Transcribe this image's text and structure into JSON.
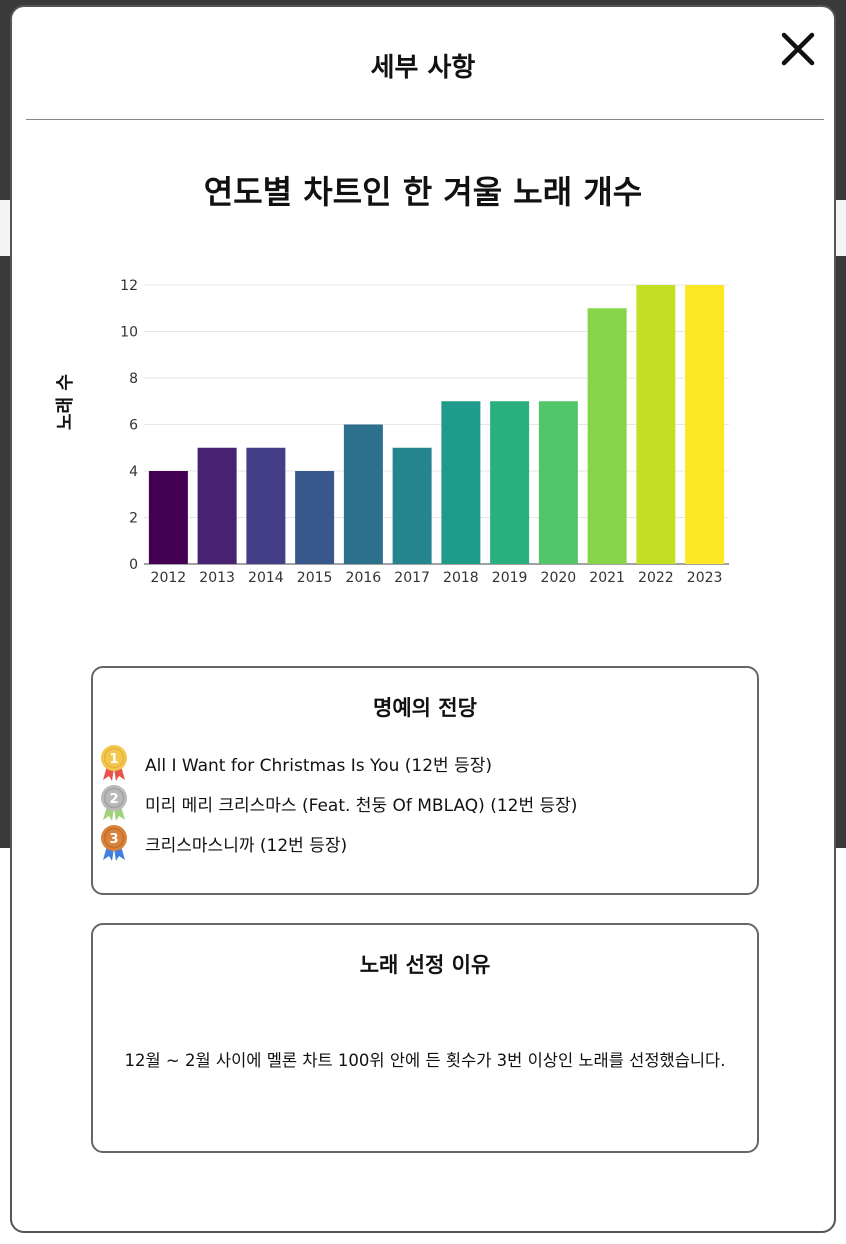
{
  "modal": {
    "title": "세부 사항",
    "close_label": "✕"
  },
  "chart_title": "연도별 차트인 한 겨울 노래 개수",
  "chart_data": {
    "type": "bar",
    "title": "연도별 차트인 한 겨울 노래 개수",
    "xlabel": "",
    "ylabel": "노래 수",
    "categories": [
      "2012",
      "2013",
      "2014",
      "2015",
      "2016",
      "2017",
      "2018",
      "2019",
      "2020",
      "2021",
      "2022",
      "2023"
    ],
    "values": [
      4,
      5,
      5,
      4,
      6,
      5,
      7,
      7,
      7,
      11,
      12,
      12
    ],
    "colors": [
      "#440154",
      "#482173",
      "#433e85",
      "#38588c",
      "#2d708e",
      "#25858e",
      "#1e9b8a",
      "#2ab07f",
      "#52c569",
      "#86d549",
      "#c2df23",
      "#fde725"
    ],
    "ylim": [
      0,
      12
    ],
    "yticks": [
      0,
      2,
      4,
      6,
      8,
      10,
      12
    ],
    "grid": true,
    "legend": "none"
  },
  "hall_of_fame": {
    "title": "명예의 전당",
    "items": [
      {
        "rank": "1",
        "text": "All I Want for Christmas Is You (12번 등장)",
        "medal_color": "#f3c74d",
        "ribbon_color": "#e5534b"
      },
      {
        "rank": "2",
        "text": "미리 메리 크리스마스 (Feat. 천둥 Of MBLAQ) (12번 등장)",
        "medal_color": "#b9b9b9",
        "ribbon_color": "#9ed37a"
      },
      {
        "rank": "3",
        "text": "크리스마스니까 (12번 등장)",
        "medal_color": "#d9823b",
        "ribbon_color": "#3f7fe0"
      }
    ]
  },
  "reason": {
    "title": "노래 선정 이유",
    "text": "12월 ~ 2월 사이에 멜론 차트 100위 안에 든 횟수가 3번 이상인 노래를 선정했습니다."
  }
}
